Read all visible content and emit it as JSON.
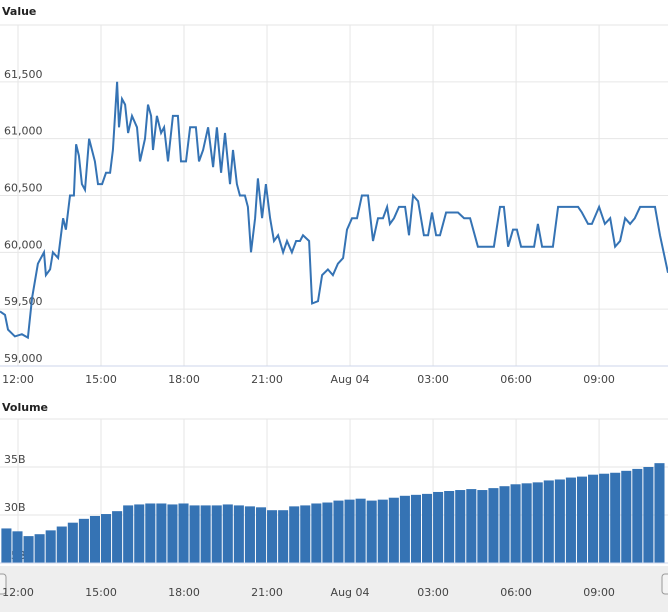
{
  "chart_data": [
    {
      "type": "line",
      "title": "Value",
      "color": "#3573b4",
      "grid": true,
      "x": [
        -0.65,
        -0.47,
        -0.36,
        -0.11,
        0.14,
        0.36,
        0.51,
        0.72,
        0.94,
        1.01,
        1.16,
        1.26,
        1.45,
        1.63,
        1.73,
        1.88,
        2.02,
        2.1,
        2.2,
        2.31,
        2.42,
        2.57,
        2.78,
        2.89,
        3.04,
        3.18,
        3.33,
        3.43,
        3.58,
        3.65,
        3.76,
        3.87,
        3.98,
        4.12,
        4.3,
        4.41,
        4.59,
        4.7,
        4.81,
        4.88,
        5.02,
        5.17,
        5.28,
        5.42,
        5.6,
        5.78,
        5.89,
        6.07,
        6.22,
        6.43,
        6.54,
        6.69,
        6.87,
        7.05,
        7.19,
        7.34,
        7.48,
        7.66,
        7.77,
        7.91,
        8.02,
        8.2,
        8.31,
        8.42,
        8.57,
        8.67,
        8.82,
        8.96,
        9.11,
        9.25,
        9.4,
        9.58,
        9.72,
        9.9,
        10.05,
        10.19,
        10.3,
        10.52,
        10.63,
        10.84,
        10.99,
        11.2,
        11.38,
        11.56,
        11.75,
        11.89,
        12.07,
        12.25,
        12.43,
        12.65,
        12.83,
        13.01,
        13.19,
        13.34,
        13.44,
        13.59,
        13.77,
        13.99,
        14.13,
        14.28,
        14.46,
        14.67,
        14.82,
        14.96,
        15.11,
        15.25,
        15.47,
        15.9,
        16.12,
        16.34,
        16.62,
        17.2,
        17.42,
        17.56,
        17.71,
        17.89,
        18.03,
        18.18,
        18.65,
        18.79,
        18.94,
        19.33,
        19.52,
        20.24,
        20.38,
        20.6,
        20.74,
        21.0,
        21.21,
        21.4,
        21.58,
        21.76,
        21.94,
        22.12,
        22.29,
        22.48,
        23.02,
        23.2,
        23.49
      ],
      "values": [
        59480,
        59450,
        59320,
        59260,
        59280,
        59250,
        59600,
        59900,
        60000,
        59800,
        59850,
        60000,
        59950,
        60300,
        60200,
        60500,
        60500,
        60950,
        60850,
        60600,
        60550,
        61000,
        60800,
        60600,
        60600,
        60700,
        60700,
        60900,
        61500,
        61100,
        61350,
        61300,
        61050,
        61200,
        61100,
        60800,
        61000,
        61300,
        61200,
        60900,
        61200,
        61050,
        61100,
        60800,
        61200,
        61200,
        60800,
        60800,
        61100,
        61100,
        60800,
        60900,
        61100,
        60750,
        61100,
        60700,
        61050,
        60600,
        60900,
        60600,
        60500,
        60500,
        60400,
        60000,
        60300,
        60650,
        60300,
        60600,
        60300,
        60100,
        60150,
        60000,
        60100,
        60000,
        60100,
        60100,
        60150,
        60100,
        59550,
        59570,
        59800,
        59850,
        59800,
        59900,
        59950,
        60200,
        60300,
        60300,
        60500,
        60500,
        60100,
        60300,
        60300,
        60400,
        60250,
        60300,
        60400,
        60400,
        60150,
        60500,
        60450,
        60150,
        60150,
        60350,
        60150,
        60150,
        60350,
        60350,
        60300,
        60300,
        60050,
        60050,
        60400,
        60400,
        60050,
        60200,
        60200,
        60050,
        60050,
        60250,
        60050,
        60050,
        60400,
        60400,
        60350,
        60250,
        60250,
        60400,
        60250,
        60300,
        60050,
        60100,
        60300,
        60250,
        60300,
        60400,
        60400,
        60150,
        59820
      ],
      "xlim": [
        -0.65,
        23.49
      ],
      "ylim": [
        59000,
        62000
      ],
      "xticks": [
        {
          "value": 0,
          "label": "12:00"
        },
        {
          "value": 3,
          "label": "15:00"
        },
        {
          "value": 6,
          "label": "18:00"
        },
        {
          "value": 9,
          "label": "21:00"
        },
        {
          "value": 12,
          "label": "Aug 04"
        },
        {
          "value": 15,
          "label": "03:00"
        },
        {
          "value": 18,
          "label": "06:00"
        },
        {
          "value": 21,
          "label": "09:00"
        }
      ],
      "yticks": [
        {
          "value": 59000,
          "label": "59,000"
        },
        {
          "value": 59500,
          "label": "59,500"
        },
        {
          "value": 60000,
          "label": "60,000"
        },
        {
          "value": 60500,
          "label": "60,500"
        },
        {
          "value": 61000,
          "label": "61,000"
        },
        {
          "value": 61500,
          "label": "61,500"
        }
      ]
    },
    {
      "type": "bar",
      "title": "Volume",
      "color": "#3573b4",
      "grid": true,
      "x": [
        -0.6,
        -0.2,
        0.2,
        0.6,
        1.0,
        1.4,
        1.8,
        2.2,
        2.6,
        3.0,
        3.4,
        3.8,
        4.2,
        4.6,
        5.0,
        5.4,
        5.8,
        6.2,
        6.6,
        7.0,
        7.4,
        7.8,
        8.2,
        8.6,
        9.0,
        9.4,
        9.8,
        10.2,
        10.6,
        11.0,
        11.4,
        11.8,
        12.2,
        12.6,
        13.0,
        13.4,
        13.8,
        14.2,
        14.6,
        15.0,
        15.4,
        15.8,
        16.2,
        16.6,
        17.0,
        17.4,
        17.8,
        18.2,
        18.6,
        19.0,
        19.4,
        19.8,
        20.2,
        20.6,
        21.0,
        21.4,
        21.8,
        22.2,
        22.6,
        23.0
      ],
      "values": [
        28.6,
        28.3,
        27.8,
        28.0,
        28.4,
        28.8,
        29.2,
        29.6,
        29.9,
        30.1,
        30.4,
        31.0,
        31.1,
        31.2,
        31.2,
        31.1,
        31.2,
        31.0,
        31.0,
        31.0,
        31.1,
        31.0,
        30.9,
        30.8,
        30.5,
        30.5,
        30.9,
        31.0,
        31.2,
        31.3,
        31.5,
        31.6,
        31.7,
        31.5,
        31.6,
        31.8,
        32.0,
        32.1,
        32.2,
        32.4,
        32.5,
        32.6,
        32.7,
        32.6,
        32.8,
        33.0,
        33.2,
        33.3,
        33.4,
        33.6,
        33.7,
        33.9,
        34.0,
        34.2,
        34.3,
        34.4,
        34.6,
        34.8,
        35.0,
        35.4
      ],
      "xlim": [
        -0.65,
        23.49
      ],
      "ylim": [
        25,
        40
      ],
      "xticks": [
        {
          "value": 0,
          "label": "12:00"
        },
        {
          "value": 3,
          "label": "15:00"
        },
        {
          "value": 6,
          "label": "18:00"
        },
        {
          "value": 9,
          "label": "21:00"
        },
        {
          "value": 12,
          "label": "Aug 04"
        },
        {
          "value": 15,
          "label": "03:00"
        },
        {
          "value": 18,
          "label": "06:00"
        },
        {
          "value": 21,
          "label": "09:00"
        }
      ],
      "yticks": [
        {
          "value": 25,
          "label": "25B"
        },
        {
          "value": 30,
          "label": "30B"
        },
        {
          "value": 35,
          "label": "35B"
        }
      ]
    }
  ]
}
